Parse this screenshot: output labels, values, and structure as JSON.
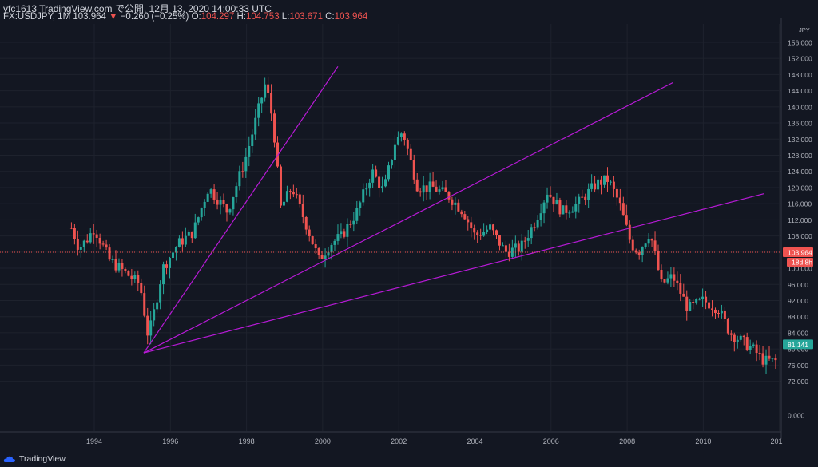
{
  "header": {
    "line1": "yfc1613 TradingView.com で公開, 12月 13, 2020 14:00:33 UTC",
    "symbol": "FX:USDJPY, 1M 103.964",
    "change_arrow": "▼",
    "change": "−0.260 (−0.25%)",
    "o_label": "O:",
    "o_value": "104.297",
    "h_label": "H:",
    "h_value": "104.753",
    "l_label": "L:",
    "l_value": "103.671",
    "c_label": "C:",
    "c_value": "103.964"
  },
  "brand": "TradingView",
  "colors": {
    "background": "#131722",
    "up": "#26a69a",
    "down": "#ef5350",
    "trendline": "#b71ad6",
    "grid": "#1e222d"
  },
  "chart_data": {
    "type": "candlestick",
    "currency_label": "JPY",
    "y_ticks": [
      156,
      152,
      148,
      144,
      140,
      136,
      132,
      128,
      124,
      120,
      116,
      112,
      108,
      104,
      100,
      96,
      92,
      88,
      84,
      80,
      76,
      72,
      0
    ],
    "y_tick_labels": [
      "156.000",
      "152.000",
      "148.000",
      "144.000",
      "140.000",
      "136.000",
      "132.000",
      "128.000",
      "124.000",
      "120.000",
      "116.000",
      "112.000",
      "108.000",
      "104.000",
      "100.000",
      "96.000",
      "92.000",
      "88.000",
      "84.000",
      "80.000",
      "76.000",
      "72.000",
      "0.000"
    ],
    "x_tick_labels": [
      "1994",
      "1996",
      "1998",
      "2000",
      "2002",
      "2004",
      "2006",
      "2008",
      "2010",
      "201"
    ],
    "last_price": "103.964",
    "countdown": "18d 8h",
    "marker_price": "81.141",
    "price_path": [
      [
        1993.4,
        110
      ],
      [
        1993.6,
        105
      ],
      [
        1993.8,
        107
      ],
      [
        1994.0,
        110
      ],
      [
        1994.2,
        106
      ],
      [
        1994.4,
        102
      ],
      [
        1994.8,
        99
      ],
      [
        1995.2,
        96
      ],
      [
        1995.4,
        84
      ],
      [
        1995.5,
        86
      ],
      [
        1995.8,
        100
      ],
      [
        1996.2,
        106
      ],
      [
        1996.6,
        109
      ],
      [
        1997.0,
        120
      ],
      [
        1997.5,
        114
      ],
      [
        1998.0,
        128
      ],
      [
        1998.5,
        146
      ],
      [
        1998.7,
        136
      ],
      [
        1998.9,
        115
      ],
      [
        1999.2,
        120
      ],
      [
        1999.6,
        110
      ],
      [
        1999.9,
        102
      ],
      [
        2000.2,
        106
      ],
      [
        2000.5,
        108
      ],
      [
        2000.9,
        114
      ],
      [
        2001.3,
        124
      ],
      [
        2001.6,
        119
      ],
      [
        2001.9,
        131
      ],
      [
        2002.1,
        134
      ],
      [
        2002.5,
        120
      ],
      [
        2002.9,
        120
      ],
      [
        2003.3,
        118
      ],
      [
        2003.7,
        114
      ],
      [
        2004.0,
        108
      ],
      [
        2004.4,
        110
      ],
      [
        2004.8,
        104
      ],
      [
        2005.2,
        105
      ],
      [
        2005.6,
        112
      ],
      [
        2005.9,
        119
      ],
      [
        2006.3,
        114
      ],
      [
        2006.7,
        116
      ],
      [
        2007.2,
        121
      ],
      [
        2007.5,
        122
      ],
      [
        2007.8,
        116
      ],
      [
        2008.1,
        106
      ],
      [
        2008.3,
        104
      ],
      [
        2008.6,
        109
      ],
      [
        2008.9,
        96
      ],
      [
        2009.2,
        98
      ],
      [
        2009.6,
        90
      ],
      [
        2010.0,
        92
      ],
      [
        2010.4,
        90
      ],
      [
        2010.7,
        84
      ],
      [
        2011.0,
        82
      ],
      [
        2011.3,
        80
      ],
      [
        2011.6,
        77
      ],
      [
        2011.9,
        77
      ]
    ],
    "trendlines": [
      {
        "x1": 1995.3,
        "y1": 79,
        "x2": 2000.4,
        "y2": 150
      },
      {
        "x1": 1995.3,
        "y1": 79,
        "x2": 2009.2,
        "y2": 146
      },
      {
        "x1": 1995.3,
        "y1": 79,
        "x2": 2011.6,
        "y2": 118.5
      }
    ]
  }
}
